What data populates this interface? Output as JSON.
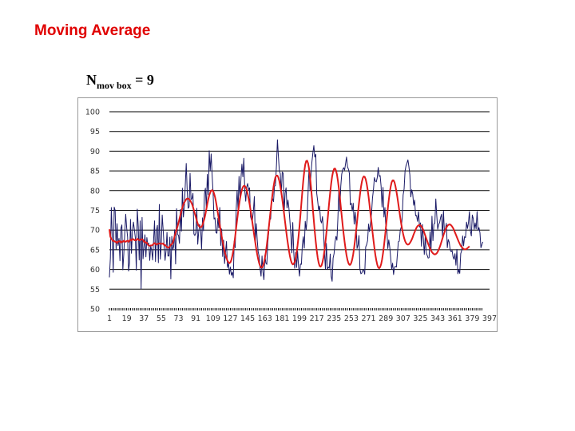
{
  "slide": {
    "title": "Moving Average",
    "formula": {
      "symbol": "N",
      "subscript": "mov box",
      "rest": " = 9"
    }
  },
  "colors": {
    "title": "#e00000",
    "raw_series": "#1a1a66",
    "moving_average": "#e01b1b",
    "grid": "#000000"
  },
  "chart_data": {
    "type": "line",
    "title": "",
    "xlabel": "",
    "ylabel": "",
    "ylim": [
      50,
      100
    ],
    "yticks": [
      100,
      95,
      90,
      85,
      80,
      75,
      70,
      65,
      60,
      55,
      50
    ],
    "xlim": [
      1,
      397
    ],
    "xtick_labels": [
      "1",
      "19",
      "37",
      "55",
      "73",
      "91",
      "109",
      "127",
      "145",
      "163",
      "181",
      "199",
      "217",
      "235",
      "253",
      "271",
      "289",
      "307",
      "325",
      "343",
      "361",
      "379",
      "397"
    ],
    "grid": "horizontal",
    "legend": "none",
    "series": [
      {
        "values": [
          58.0,
          62.9,
          75.7,
          68.3,
          59.3,
          75.8,
          75.0,
          65.1,
          71.6,
          66.1,
          67.9,
          62.2,
          70.4,
          71.3,
          59.9,
          63.9,
          69.2,
          74.0,
          70.6,
          68.2,
          59.6,
          61.7,
          72.7,
          64.1,
          69.6,
          72.0,
          70.0,
          68.0,
          59.8,
          75.3,
          70.9,
          62.4,
          72.3,
          55.1,
          73.2,
          62.7,
          65.7,
          68.8,
          63.2,
          68.1,
          66.1,
          66.7,
          62.3,
          66.0,
          64.9,
          62.4,
          67.3,
          72.3,
          62.0,
          69.9,
          71.2,
          61.7,
          76.5,
          62.6,
          66.0,
          73.8,
          70.0,
          65.9,
          62.3,
          64.8,
          69.4,
          63.4,
          63.4,
          68.2,
          57.6,
          68.4,
          64.9,
          65.9,
          70.1,
          61.4,
          75.4,
          68.8,
          68.7,
          66.6,
          75.2,
          69.7,
          80.6,
          73.3,
          75.8,
          81.4,
          86.9,
          80.0,
          75.5,
          75.9,
          84.4,
          77.7,
          78.0,
          79.3,
          69.0,
          68.6,
          69.3,
          75.5,
          66.4,
          69.5,
          71.4,
          70.4,
          65.2,
          73.1,
          69.8,
          79.2,
          80.6,
          75.4,
          84.1,
          79.0,
          90.1,
          85.0,
          89.3,
          84.0,
          79.6,
          72.8,
          73.1,
          69.4,
          69.2,
          73.0,
          70.5,
          75.7,
          66.1,
          70.3,
          63.3,
          67.4,
          61.5,
          64.4,
          67.1,
          60.5,
          61.7,
          58.8,
          60.6,
          58.5,
          59.3,
          57.9,
          67.2,
          65.5,
          74.9,
          80.0,
          75.2,
          83.6,
          78.3,
          83.0,
          86.7,
          83.5,
          88.2,
          80.0,
          77.3,
          80.9,
          81.8,
          80.2,
          80.7,
          73.4,
          72.5,
          72.5,
          74.9,
          78.5,
          67.0,
          71.6,
          67.5,
          64.4,
          63.4,
          60.1,
          58.3,
          63.4,
          59.3,
          57.4,
          63.6,
          61.6,
          61.3,
          66.7,
          69.5,
          72.6,
          72.8,
          76.9,
          78.0,
          77.2,
          81.1,
          81.3,
          86.5,
          92.9,
          88.7,
          85.0,
          84.3,
          79.1,
          84.7,
          84.4,
          74.4,
          79.4,
          80.7,
          75.6,
          77.6,
          75.5,
          72.3,
          68.9,
          64.2,
          71.9,
          64.5,
          60.3,
          64.3,
          60.5,
          64.7,
          60.9,
          58.3,
          61.4,
          61.3,
          66.3,
          68.3,
          65.4,
          72.2,
          70.0,
          73.2,
          79.7,
          86.2,
          80.0,
          84.4,
          87.3,
          89.6,
          91.4,
          88.5,
          89.2,
          79.3,
          77.3,
          75.0,
          76.1,
          72.4,
          71.8,
          73.4,
          69.8,
          64.2,
          60.1,
          66.6,
          60.0,
          60.6,
          60.3,
          63.9,
          58.2,
          57.0,
          62.9,
          64.0,
          66.9,
          68.4,
          67.4,
          73.0,
          80.4,
          74.8,
          81.1,
          84.2,
          85.3,
          85.8,
          85.2,
          86.8,
          88.5,
          86.1,
          85.4,
          84.4,
          76.4,
          76.8,
          74.8,
          76.8,
          71.5,
          74.6,
          71.4,
          65.3,
          66.2,
          68.6,
          60.1,
          58.9,
          59.1,
          59.9,
          59.8,
          58.8,
          65.7,
          66.3,
          67.3,
          71.5,
          69.6,
          71.6,
          74.2,
          78.1,
          80.2,
          83.3,
          82.4,
          82.2,
          83.3,
          85.9,
          83.6,
          83.8,
          81.1,
          75.8,
          80.8,
          73.3,
          75.7,
          70.4,
          70.2,
          65.3,
          67.5,
          65.7,
          63.0,
          60.1,
          61.6,
          58.7,
          60.6,
          60.8,
          60.6,
          63.9,
          67.0,
          67.2,
          70.0,
          70.7,
          73.0,
          78.9,
          80.4,
          85.0,
          86.3,
          87.0,
          87.8,
          86.1,
          84.0,
          78.4,
          80.2,
          79.1,
          76.3,
          77.6,
          73.6,
          73.7,
          72.2,
          74.7,
          70.7,
          71.8,
          65.9,
          71.4,
          67.9,
          63.8,
          68.5,
          64.2,
          63.6,
          62.9,
          63.0,
          69.6,
          64.6,
          73.5,
          67.3,
          71.5,
          71.7,
          77.9,
          73.7,
          70.2,
          71.4,
          71.9,
          73.2,
          74.0,
          68.2,
          74.9,
          69.3,
          70.2,
          71.7,
          65.5,
          67.6,
          66.9,
          65.0,
          64.5,
          64.8,
          63.2,
          62.6,
          64.0,
          61.1,
          65.1,
          58.9,
          59.9,
          59.0,
          64.0,
          64.8,
          68.5,
          66.0,
          68.3,
          68.1,
          72.0,
          70.4,
          71.9,
          74.7,
          69.8,
          68.5,
          73.8,
          72.9,
          70.2,
          71.8,
          70.3,
          74.7,
          69.9,
          70.6,
          69.3,
          65.5,
          66.3,
          67.0
        ]
      },
      {
        "values": [
          70.2,
          68.3,
          67.8,
          67.5,
          67.2,
          67.2,
          67.0,
          67.0,
          66.7,
          67.1,
          67.1,
          67.2,
          66.8,
          67.1,
          67.0,
          67.3,
          67.1,
          67.0,
          67.2,
          67.3,
          67.0,
          67.3,
          67.6,
          67.3,
          67.7,
          67.7,
          67.4,
          67.5,
          67.4,
          67.8,
          67.6,
          67.4,
          67.4,
          67.6,
          67.7,
          67.5,
          67.0,
          67.1,
          66.7,
          66.8,
          66.3,
          66.1,
          66.0,
          66.1,
          66.1,
          66.2,
          66.5,
          66.7,
          66.5,
          66.3,
          66.5,
          66.5,
          66.6,
          66.6,
          66.5,
          66.5,
          66.6,
          66.2,
          66.2,
          65.9,
          65.7,
          65.5,
          65.6,
          65.8,
          66.3,
          66.4,
          66.7,
          67.5,
          68.5,
          69.3,
          70.1,
          70.9,
          71.8,
          72.8,
          73.8,
          74.8,
          75.7,
          76.5,
          77.0,
          77.4,
          77.8,
          78.0,
          78.0,
          77.8,
          77.5,
          77.1,
          76.6,
          75.9,
          75.0,
          74.1,
          73.3,
          72.4,
          71.6,
          71.1,
          70.8,
          70.7,
          70.8,
          71.3,
          72.1,
          72.9,
          74.0,
          75.3,
          76.6,
          77.8,
          78.8,
          79.5,
          80.0,
          80.1,
          79.9,
          79.3,
          78.4,
          77.2,
          75.8,
          74.3,
          72.8,
          71.3,
          69.8,
          68.4,
          67.1,
          65.8,
          64.7,
          63.7,
          62.9,
          62.2,
          61.8,
          61.6,
          61.8,
          62.4,
          63.4,
          64.8,
          66.5,
          68.4,
          70.5,
          72.5,
          74.5,
          76.3,
          77.9,
          79.2,
          80.2,
          80.9,
          81.2,
          81.2,
          80.8,
          80.2,
          79.2,
          78.0,
          76.6,
          75.1,
          73.5,
          71.8,
          70.1,
          68.4,
          66.8,
          65.2,
          63.8,
          62.6,
          61.6,
          60.9,
          60.5,
          60.5,
          60.9,
          61.7,
          62.9,
          64.4,
          66.2,
          68.3,
          70.5,
          72.8,
          75.0,
          77.2,
          79.2,
          81.0,
          82.4,
          83.4,
          83.8,
          83.8,
          83.3,
          82.4,
          81.1,
          79.6,
          77.9,
          76.0,
          74.0,
          72.0,
          70.0,
          68.1,
          66.4,
          64.8,
          63.4,
          62.3,
          61.6,
          61.3,
          61.4,
          61.9,
          62.9,
          64.3,
          66.1,
          68.3,
          70.9,
          73.8,
          76.8,
          79.8,
          82.6,
          84.9,
          86.6,
          87.5,
          87.6,
          86.9,
          85.5,
          83.5,
          81.0,
          78.2,
          75.2,
          72.3,
          69.5,
          67.0,
          64.8,
          63.0,
          61.7,
          60.9,
          60.7,
          61.0,
          61.8,
          63.1,
          64.8,
          66.9,
          69.3,
          71.9,
          74.6,
          77.2,
          79.6,
          81.8,
          83.6,
          84.8,
          85.5,
          85.6,
          85.1,
          84.1,
          82.5,
          80.6,
          78.4,
          76.0,
          73.6,
          71.2,
          69.0,
          67.0,
          65.2,
          63.6,
          62.4,
          61.6,
          61.2,
          61.2,
          61.7,
          62.6,
          63.9,
          65.6,
          67.6,
          69.8,
          72.1,
          74.5,
          76.8,
          78.9,
          80.8,
          82.2,
          83.2,
          83.6,
          83.5,
          82.9,
          81.8,
          80.3,
          78.5,
          76.4,
          74.2,
          71.9,
          69.6,
          67.5,
          65.5,
          63.7,
          62.3,
          61.2,
          60.5,
          60.3,
          60.6,
          61.3,
          62.5,
          64.1,
          66.0,
          68.2,
          70.6,
          73.0,
          75.4,
          77.6,
          79.5,
          81.0,
          82.1,
          82.6,
          82.6,
          82.1,
          81.1,
          79.8,
          78.3,
          76.6,
          74.9,
          73.2,
          71.6,
          70.2,
          69.0,
          68.0,
          67.2,
          66.7,
          66.4,
          66.3,
          66.4,
          66.7,
          67.1,
          67.6,
          68.2,
          68.9,
          69.5,
          70.1,
          70.6,
          71.0,
          71.2,
          71.3,
          71.2,
          70.9,
          70.5,
          70.0,
          69.3,
          68.6,
          67.9,
          67.2,
          66.5,
          65.9,
          65.3,
          64.8,
          64.4,
          64.1,
          63.9,
          63.8,
          63.9,
          64.1,
          64.5,
          65.0,
          65.6,
          66.3,
          67.1,
          67.9,
          68.7,
          69.4,
          70.1,
          70.6,
          71.0,
          71.3,
          71.4,
          71.4,
          71.2,
          70.9,
          70.5,
          70.0,
          69.4,
          68.8,
          68.2,
          67.6,
          67.0,
          66.5,
          66.0,
          65.7,
          65.4,
          65.2,
          65.1,
          65.1,
          65.2,
          65.4,
          65.6,
          65.9
        ]
      }
    ]
  }
}
